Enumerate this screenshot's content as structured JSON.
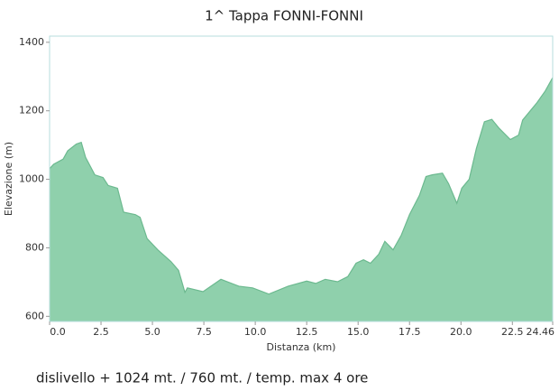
{
  "chart_data": {
    "type": "area",
    "title": "1^ Tappa FONNI-FONNI",
    "x_label": "Distanza   (km)",
    "y_label": "Elevazione (m)",
    "footer": "dislivello + 1024 mt.  / 760 mt. / temp. max 4 ore",
    "color": "#8fd0ac",
    "line_color": "#6cb98f",
    "grid": false,
    "xlim": [
      0,
      24.46
    ],
    "ylim": [
      585,
      1418
    ],
    "xticks": [
      {
        "value": 0,
        "label": "0.0"
      },
      2.5,
      {
        "value": 5,
        "label": "5.0"
      },
      7.5,
      {
        "value": 10,
        "label": "10.0"
      },
      12.5,
      {
        "value": 15,
        "label": "15.0"
      },
      17.5,
      {
        "value": 20,
        "label": "20.0"
      },
      22.5,
      24.46
    ],
    "yticks": [
      600,
      800,
      1000,
      1200,
      1400
    ],
    "x": [
      0,
      0.2,
      0.66,
      0.88,
      1.3,
      1.54,
      1.75,
      2.2,
      2.6,
      2.85,
      3.3,
      3.6,
      4.17,
      4.4,
      4.74,
      5.26,
      5.9,
      6.27,
      6.58,
      6.7,
      7.46,
      8.33,
      9.2,
      9.87,
      10.66,
      11.6,
      12.5,
      12.94,
      13.4,
      14.0,
      14.5,
      14.9,
      15.26,
      15.6,
      16,
      16.3,
      16.7,
      17.1,
      17.5,
      17.98,
      18.3,
      18.6,
      19.1,
      19.4,
      19.8,
      20.04,
      20.4,
      20.75,
      21.14,
      21.5,
      21.84,
      22.4,
      22.8,
      23.0,
      23.7,
      24.1,
      24.46
    ],
    "values": [
      1031,
      1044,
      1059,
      1083,
      1103,
      1108,
      1064,
      1013,
      1005,
      982,
      974,
      904,
      897,
      889,
      827,
      794,
      760,
      734,
      670,
      683,
      672,
      708,
      688,
      683,
      665,
      688,
      703,
      696,
      708,
      701,
      716,
      755,
      765,
      755,
      781,
      819,
      794,
      837,
      897,
      953,
      1008,
      1013,
      1018,
      987,
      930,
      974,
      1000,
      1090,
      1168,
      1175,
      1150,
      1116,
      1129,
      1173,
      1224,
      1258,
      1297
    ]
  }
}
